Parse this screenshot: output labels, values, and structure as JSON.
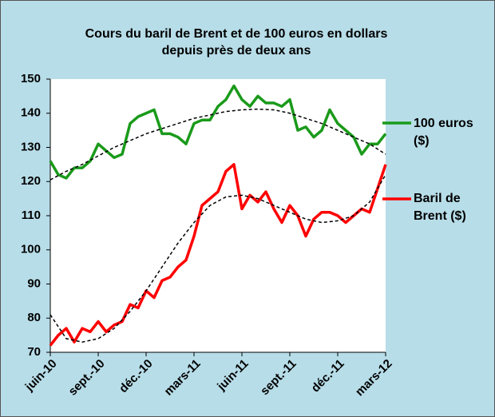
{
  "chart_data": {
    "type": "line",
    "title": [
      "Cours du baril de Brent et de 100 euros en dollars",
      "depuis près de deux ans"
    ],
    "x": [
      0,
      0.5,
      1,
      1.5,
      2,
      2.5,
      3,
      3.5,
      4,
      4.5,
      5,
      5.5,
      6,
      6.5,
      7,
      7.5,
      8,
      8.5,
      9,
      9.5,
      10,
      10.5,
      11,
      11.5,
      12,
      12.5,
      13,
      13.5,
      14,
      14.5,
      15,
      15.5,
      16,
      16.5,
      17,
      17.5,
      18,
      18.5,
      19,
      19.5,
      20,
      20.5,
      21
    ],
    "series": [
      {
        "name": "100 euros ($)",
        "color": "#1a9a1a",
        "values": [
          126,
          122,
          121,
          124,
          124,
          126,
          131,
          129,
          127,
          128,
          137,
          139,
          140,
          141,
          134,
          134,
          133,
          131,
          137,
          138,
          138,
          142,
          144,
          148,
          144,
          142,
          145,
          143,
          143,
          142,
          144,
          135,
          136,
          133,
          135,
          141,
          137,
          135,
          133,
          128,
          131,
          131,
          134
        ],
        "trend_x": [
          0,
          1,
          2,
          3,
          4,
          5,
          6,
          7,
          8,
          9,
          10,
          11,
          12,
          13,
          14,
          15,
          16,
          17,
          18,
          19,
          20,
          21
        ],
        "trend_values": [
          120.5,
          123,
          125,
          127.5,
          130,
          132,
          134,
          135.5,
          137,
          138.5,
          139.5,
          140.5,
          141,
          141.2,
          141,
          140,
          138.5,
          137,
          135,
          133,
          131,
          128
        ]
      },
      {
        "name": "Baril de Brent ($)",
        "color": "#ff0000",
        "values": [
          72,
          75,
          77,
          73,
          77,
          76,
          79,
          76,
          78,
          79,
          84,
          83,
          88,
          86,
          91,
          92,
          95,
          97,
          104,
          113,
          115,
          117,
          123,
          125,
          112,
          116,
          114,
          117,
          112,
          108,
          113,
          110,
          104,
          109,
          111,
          111,
          110,
          108,
          110,
          112,
          111,
          118,
          125
        ],
        "trend_x": [
          0,
          1,
          2,
          3,
          4,
          5,
          6,
          7,
          8,
          9,
          10,
          11,
          12,
          13,
          14,
          15,
          16,
          17,
          18,
          19,
          20,
          21
        ],
        "trend_values": [
          81,
          74,
          73,
          74,
          77,
          82,
          88,
          95,
          102,
          108,
          113,
          115.5,
          116,
          115,
          113,
          111,
          109,
          108,
          108.5,
          110,
          114,
          122
        ]
      }
    ],
    "xlim": [
      0,
      21
    ],
    "xticks": [
      {
        "value": 0,
        "label": "juin-10"
      },
      {
        "value": 3,
        "label": "sept.-10"
      },
      {
        "value": 6,
        "label": "déc.-10"
      },
      {
        "value": 9,
        "label": "mars-11"
      },
      {
        "value": 12,
        "label": "juin-11"
      },
      {
        "value": 15,
        "label": "sept.-11"
      },
      {
        "value": 18,
        "label": "déc.-11"
      },
      {
        "value": 21,
        "label": "mars-12"
      }
    ],
    "ylim": [
      70,
      150
    ],
    "yticks": [
      70,
      80,
      90,
      100,
      110,
      120,
      130,
      140,
      150
    ],
    "grid": false
  }
}
